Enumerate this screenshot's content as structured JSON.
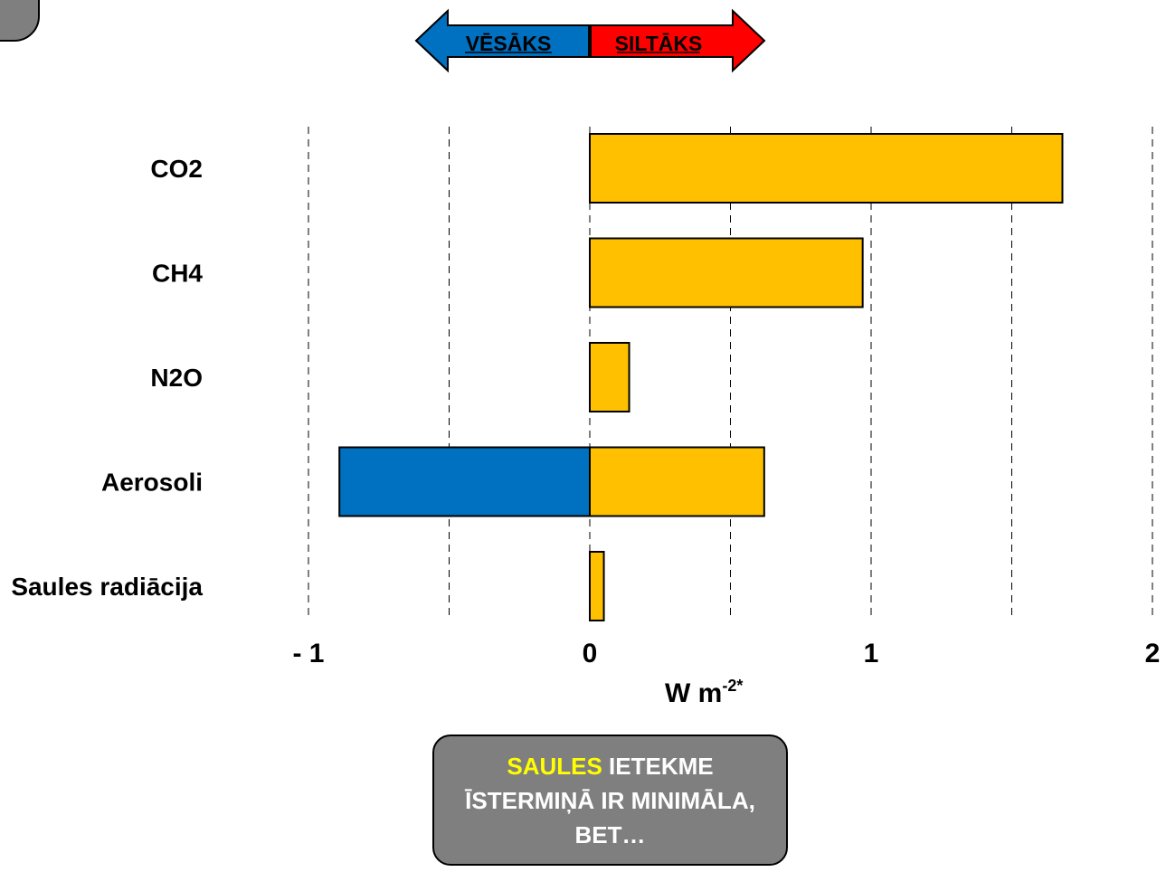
{
  "arrow": {
    "left_label": "VĒSĀKS",
    "right_label": "SILTĀKS",
    "left_color": "#0070c0",
    "right_color": "#ff0000"
  },
  "chart_data": {
    "type": "bar",
    "orientation": "horizontal",
    "categories": [
      "CO2",
      "CH4",
      "N2O",
      "Aerosoli",
      "Saules radiācija"
    ],
    "series": [
      {
        "values": [
          1.68,
          0.97,
          0.14,
          0.62,
          0.05
        ]
      },
      {
        "values": [
          0,
          0,
          0,
          0,
          0
        ]
      }
    ],
    "negative_values": [
      0,
      0,
      0,
      -0.89,
      0
    ],
    "xlim": [
      -1,
      2
    ],
    "xticks": [
      "- 1",
      "0",
      "1",
      "2"
    ],
    "xlabel": "W m",
    "xlabel_sup": "-2*",
    "grid": "vertical dashed every 0.5",
    "colors": {
      "positive": "#ffc000",
      "negative": "#0070c0"
    }
  },
  "callout": {
    "highlight": "SAULES",
    "line1_rest": " IETEKME",
    "line2": "ĪSTERMIŅĀ IR MINIMĀLA,",
    "line3": "BET…"
  }
}
